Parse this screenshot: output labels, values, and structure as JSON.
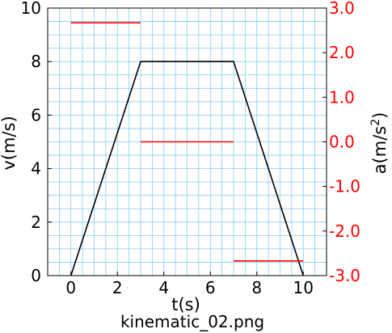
{
  "chart_data": {
    "type": "line",
    "caption": "kinematic_02.png",
    "xlabel": "t(s)",
    "ylabel_left": "v(m/s)",
    "ylabel_right_base": "a(m/s",
    "ylabel_right_exp": "2",
    "ylabel_right_close": ")",
    "xlim": [
      -1,
      11
    ],
    "ylim_left": [
      0,
      10
    ],
    "ylim_right": [
      -3.0,
      3.0
    ],
    "x_ticks": [
      {
        "value": 0,
        "label": "0"
      },
      {
        "value": 2,
        "label": "2"
      },
      {
        "value": 4,
        "label": "4"
      },
      {
        "value": 6,
        "label": "6"
      },
      {
        "value": 8,
        "label": "8"
      },
      {
        "value": 10,
        "label": "10"
      }
    ],
    "y_left_ticks": [
      {
        "value": 0,
        "label": "0"
      },
      {
        "value": 2,
        "label": "2"
      },
      {
        "value": 4,
        "label": "4"
      },
      {
        "value": 6,
        "label": "6"
      },
      {
        "value": 8,
        "label": "8"
      },
      {
        "value": 10,
        "label": "10"
      }
    ],
    "y_right_ticks": [
      {
        "value": 3.0,
        "label": "3.0"
      },
      {
        "value": 2.0,
        "label": "2.0"
      },
      {
        "value": 1.0,
        "label": "1.0"
      },
      {
        "value": 0.0,
        "label": "0.0"
      },
      {
        "value": -1.0,
        "label": "-1.0"
      },
      {
        "value": -2.0,
        "label": "-2.0"
      },
      {
        "value": -3.0,
        "label": "-3.0"
      }
    ],
    "grid": true,
    "grid_color": "#87ceeb",
    "velocity_color": "#000000",
    "acceleration_color": "#ff0000",
    "velocity": {
      "x": [
        0,
        3,
        7,
        10
      ],
      "y": [
        0,
        8,
        8,
        0
      ]
    },
    "acceleration": [
      {
        "x0": 0,
        "x1": 3,
        "a": 2.67
      },
      {
        "x0": 3,
        "x1": 7,
        "a": 0.0
      },
      {
        "x0": 7,
        "x1": 10,
        "a": -2.67
      }
    ]
  }
}
